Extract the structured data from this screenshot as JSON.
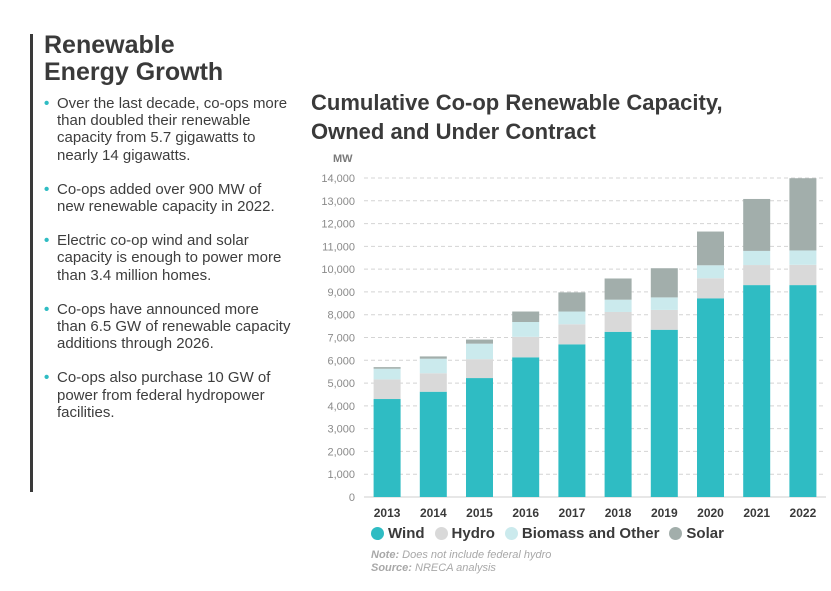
{
  "section": {
    "title_line1": "Renewable",
    "title_line2": "Energy Growth",
    "bullets": [
      "Over the last decade, co-ops more than doubled their renewable capacity from 5.7 gigawatts to nearly 14 gigawatts.",
      "Co-ops added over 900 MW of new renewable capacity in 2022.",
      "Electric co-op wind and solar capacity is enough to power more than 3.4 million homes.",
      "Co-ops have announced more than 6.5 GW of renewable capacity additions through 2026.",
      "Co-ops also purchase 10 GW of power from federal hydropower facilities."
    ]
  },
  "note": {
    "note_label": "Note:",
    "note_text": "Does not include federal hydro",
    "source_label": "Source:",
    "source_text": "NRECA analysis"
  },
  "chart_data": {
    "type": "bar",
    "stacked": true,
    "title_line1": "Cumulative Co-op Renewable Capacity,",
    "title_line2": "Owned and Under Contract",
    "ylabel": "MW",
    "ylim": [
      0,
      14000
    ],
    "yticks": [
      "0",
      "1,000",
      "2,000",
      "3,000",
      "4,000",
      "5,000",
      "6,000",
      "7,000",
      "8,000",
      "9,000",
      "10,000",
      "11,000",
      "12,000",
      "13,000",
      "14,000"
    ],
    "categories": [
      "2013",
      "2014",
      "2015",
      "2016",
      "2017",
      "2018",
      "2019",
      "2020",
      "2021",
      "2022"
    ],
    "series": [
      {
        "name": "Wind",
        "color": "#2fbcc3",
        "values": [
          4300,
          4620,
          5220,
          6130,
          6700,
          7250,
          7340,
          8720,
          9300,
          9300
        ]
      },
      {
        "name": "Hydro",
        "color": "#d9d9d9",
        "values": [
          860,
          810,
          830,
          900,
          880,
          870,
          870,
          880,
          880,
          890
        ]
      },
      {
        "name": "Biomass and Other",
        "color": "#cbeaed",
        "values": [
          470,
          640,
          680,
          650,
          560,
          540,
          550,
          570,
          620,
          630
        ]
      },
      {
        "name": "Solar",
        "color": "#a2aeab",
        "values": [
          70,
          100,
          180,
          460,
          840,
          930,
          1280,
          1480,
          2280,
          3170
        ]
      }
    ],
    "grid": true,
    "legend_position": "bottom"
  }
}
